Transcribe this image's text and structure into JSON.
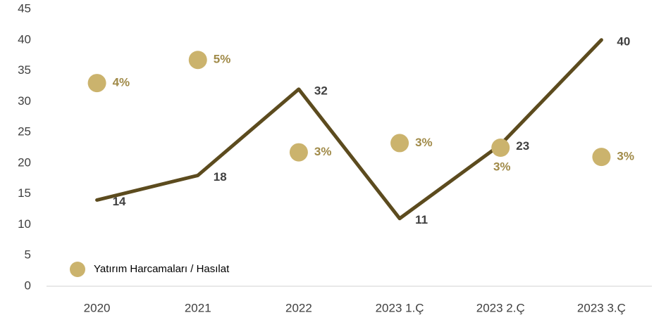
{
  "chart_data": {
    "type": "line",
    "categories": [
      "2020",
      "2021",
      "2022",
      "2023 1.Ç",
      "2023 2.Ç",
      "2023 3.Ç"
    ],
    "ylim": [
      0,
      45
    ],
    "yticks": [
      0,
      5,
      10,
      15,
      20,
      25,
      30,
      35,
      40,
      45
    ],
    "y2lim": [
      0,
      6
    ],
    "grid": false,
    "legend": "lower left",
    "series": [
      {
        "type": "line",
        "color": "#5c4b1e",
        "values": [
          14,
          18,
          32,
          11,
          23,
          40
        ]
      },
      {
        "type": "scatter",
        "name": "Yatırım Harcamaları / Hasılat",
        "color": "#cbb36d",
        "axis": "y2",
        "values": [
          4.4,
          4.9,
          2.9,
          3.1,
          3.0,
          2.8
        ],
        "value_labels": [
          "4%",
          "5%",
          "3%",
          "3%",
          "3%",
          "3%"
        ]
      }
    ]
  }
}
